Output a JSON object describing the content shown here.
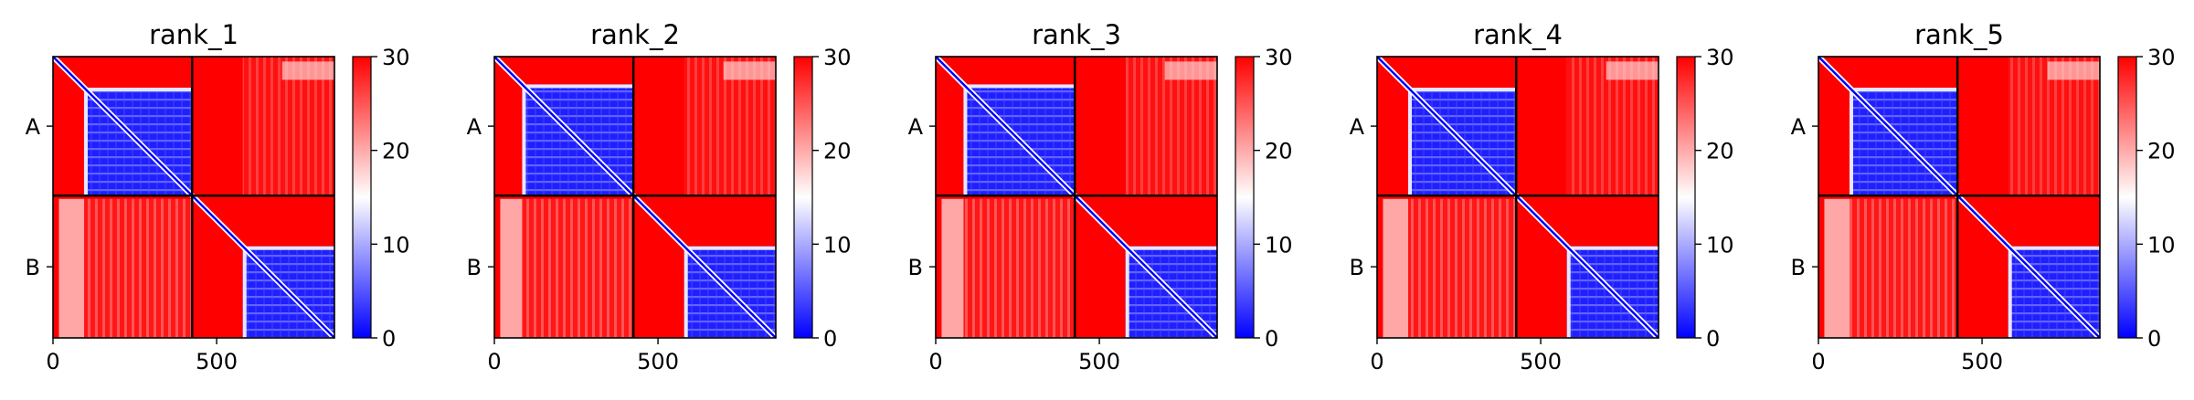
{
  "chart_data": [
    {
      "type": "heatmap",
      "title": "rank_1",
      "xticks": [
        "0",
        "500"
      ],
      "xtick_values": [
        0,
        500
      ],
      "ylabels": [
        "A",
        "B"
      ],
      "xlim": [
        0,
        860
      ],
      "chain_boundary": 425,
      "chain_a_structured_start": 95,
      "chain_b_structured_start": 580,
      "colorbar": {
        "min": 0,
        "max": 30,
        "ticks": [
          "0",
          "10",
          "20",
          "30"
        ],
        "tick_values": [
          0,
          10,
          20,
          30
        ],
        "colormap": "bwr"
      },
      "colors": {
        "low": "#0000ff",
        "mid": "#ffffff",
        "high": "#ff0000"
      }
    },
    {
      "type": "heatmap",
      "title": "rank_2",
      "xticks": [
        "0",
        "500"
      ],
      "xtick_values": [
        0,
        500
      ],
      "ylabels": [
        "A",
        "B"
      ],
      "xlim": [
        0,
        860
      ],
      "chain_boundary": 425,
      "chain_a_structured_start": 85,
      "chain_b_structured_start": 580,
      "colorbar": {
        "min": 0,
        "max": 30,
        "ticks": [
          "0",
          "10",
          "20",
          "30"
        ],
        "tick_values": [
          0,
          10,
          20,
          30
        ],
        "colormap": "bwr"
      },
      "colors": {
        "low": "#0000ff",
        "mid": "#ffffff",
        "high": "#ff0000"
      }
    },
    {
      "type": "heatmap",
      "title": "rank_3",
      "xticks": [
        "0",
        "500"
      ],
      "xtick_values": [
        0,
        500
      ],
      "ylabels": [
        "A",
        "B"
      ],
      "xlim": [
        0,
        860
      ],
      "chain_boundary": 425,
      "chain_a_structured_start": 85,
      "chain_b_structured_start": 580,
      "colorbar": {
        "min": 0,
        "max": 30,
        "ticks": [
          "0",
          "10",
          "20",
          "30"
        ],
        "tick_values": [
          0,
          10,
          20,
          30
        ],
        "colormap": "bwr"
      },
      "colors": {
        "low": "#0000ff",
        "mid": "#ffffff",
        "high": "#ff0000"
      }
    },
    {
      "type": "heatmap",
      "title": "rank_4",
      "xticks": [
        "0",
        "500"
      ],
      "xtick_values": [
        0,
        500
      ],
      "ylabels": [
        "A",
        "B"
      ],
      "xlim": [
        0,
        860
      ],
      "chain_boundary": 425,
      "chain_a_structured_start": 95,
      "chain_b_structured_start": 580,
      "colorbar": {
        "min": 0,
        "max": 30,
        "ticks": [
          "0",
          "10",
          "20",
          "30"
        ],
        "tick_values": [
          0,
          10,
          20,
          30
        ],
        "colormap": "bwr"
      },
      "colors": {
        "low": "#0000ff",
        "mid": "#ffffff",
        "high": "#ff0000"
      }
    },
    {
      "type": "heatmap",
      "title": "rank_5",
      "xticks": [
        "0",
        "500"
      ],
      "xtick_values": [
        0,
        500
      ],
      "ylabels": [
        "A",
        "B"
      ],
      "xlim": [
        0,
        860
      ],
      "chain_boundary": 425,
      "chain_a_structured_start": 95,
      "chain_b_structured_start": 580,
      "colorbar": {
        "min": 0,
        "max": 30,
        "ticks": [
          "0",
          "10",
          "20",
          "30"
        ],
        "tick_values": [
          0,
          10,
          20,
          30
        ],
        "colormap": "bwr"
      },
      "colors": {
        "low": "#0000ff",
        "mid": "#ffffff",
        "high": "#ff0000"
      }
    }
  ]
}
